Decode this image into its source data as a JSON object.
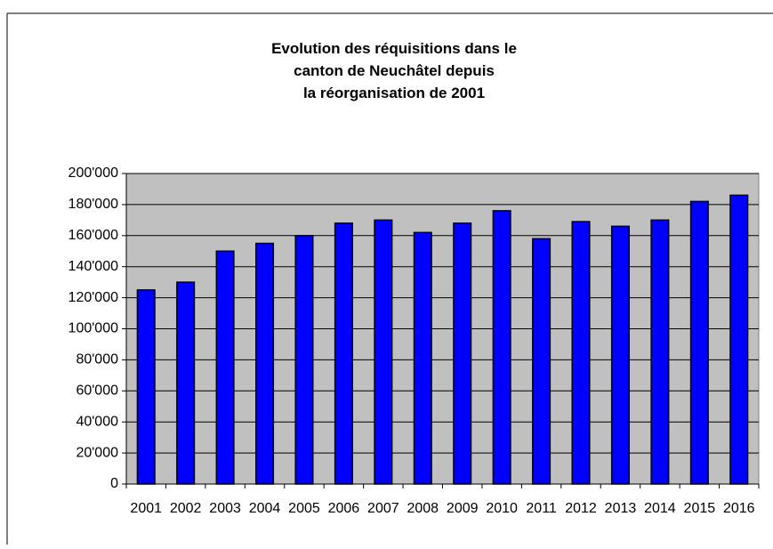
{
  "chart_data": {
    "type": "bar",
    "title": "Evolution des réquisitions dans le\ncanton de Neuchâtel depuis\nla réorganisation de 2001",
    "categories": [
      "2001",
      "2002",
      "2003",
      "2004",
      "2005",
      "2006",
      "2007",
      "2008",
      "2009",
      "2010",
      "2011",
      "2012",
      "2013",
      "2014",
      "2015",
      "2016"
    ],
    "values": [
      125000,
      130000,
      150000,
      155000,
      160000,
      168000,
      170000,
      162000,
      168000,
      176000,
      158000,
      169000,
      166000,
      170000,
      182000,
      186000
    ],
    "color": "#0000ff",
    "ylim": [
      0,
      200000
    ],
    "yticks": [
      0,
      {
        "value": 20000,
        "label": "20'000"
      },
      {
        "value": 40000,
        "label": "40'000"
      },
      {
        "value": 60000,
        "label": "60'000"
      },
      {
        "value": 80000,
        "label": "80'000"
      },
      {
        "value": 100000,
        "label": "100'000"
      },
      {
        "value": 120000,
        "label": "120'000"
      },
      {
        "value": 140000,
        "label": "140'000"
      },
      {
        "value": 160000,
        "label": "160'000"
      },
      {
        "value": 180000,
        "label": "180'000"
      },
      {
        "value": 200000,
        "label": "200'000"
      }
    ],
    "grid": true
  }
}
